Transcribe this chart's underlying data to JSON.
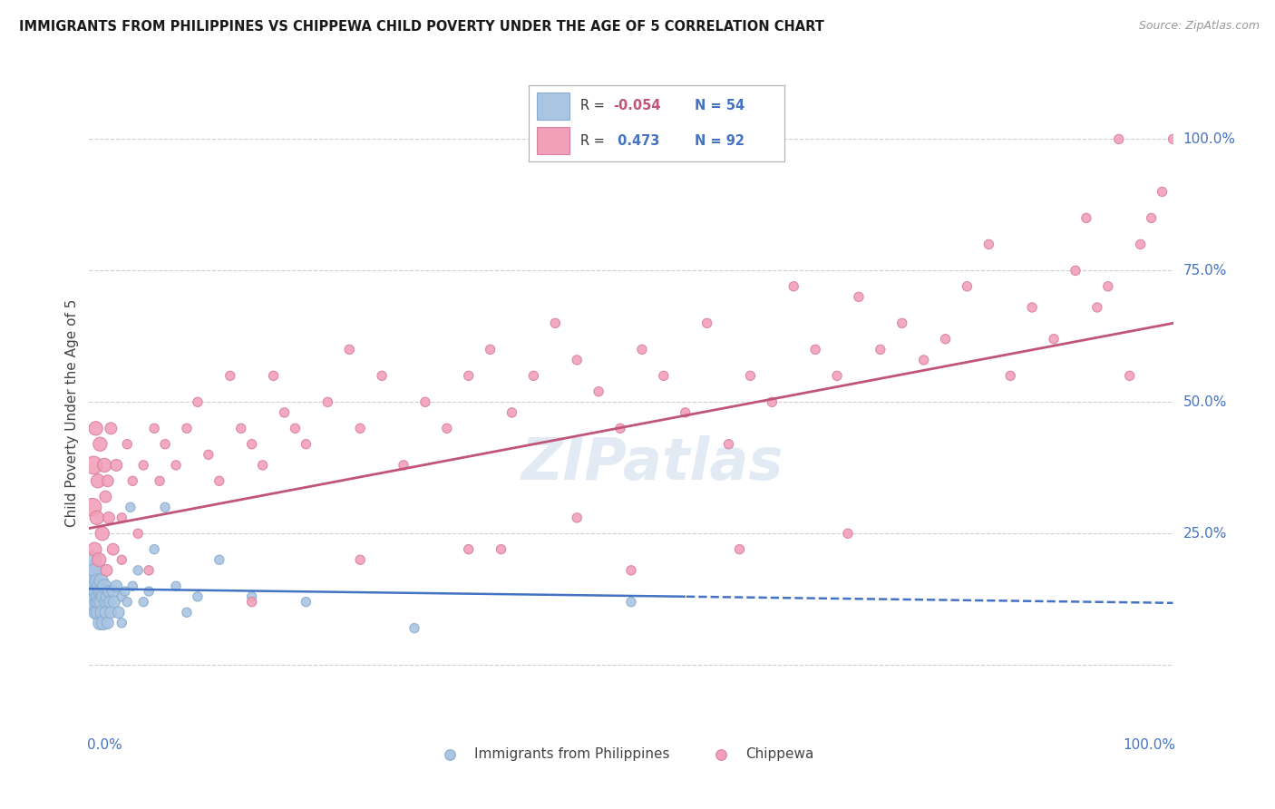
{
  "title": "IMMIGRANTS FROM PHILIPPINES VS CHIPPEWA CHILD POVERTY UNDER THE AGE OF 5 CORRELATION CHART",
  "source": "Source: ZipAtlas.com",
  "ylabel": "Child Poverty Under the Age of 5",
  "ytick_positions": [
    0.0,
    0.25,
    0.5,
    0.75,
    1.0
  ],
  "ytick_labels": [
    "",
    "25.0%",
    "50.0%",
    "75.0%",
    "100.0%"
  ],
  "xlim": [
    0.0,
    1.0
  ],
  "ylim": [
    -0.12,
    1.08
  ],
  "watermark": "ZIPatlas",
  "color_blue": "#aac5e2",
  "color_pink": "#f2a0b8",
  "line_blue": "#4472c4",
  "line_pink": "#c0547a",
  "background_color": "#ffffff",
  "grid_color": "#d0d0d0",
  "title_color": "#1a1a1a",
  "source_color": "#999999",
  "blue_points": [
    [
      0.002,
      0.18
    ],
    [
      0.003,
      0.14
    ],
    [
      0.003,
      0.2
    ],
    [
      0.004,
      0.16
    ],
    [
      0.004,
      0.12
    ],
    [
      0.005,
      0.15
    ],
    [
      0.005,
      0.18
    ],
    [
      0.006,
      0.1
    ],
    [
      0.006,
      0.14
    ],
    [
      0.007,
      0.12
    ],
    [
      0.007,
      0.16
    ],
    [
      0.008,
      0.13
    ],
    [
      0.008,
      0.1
    ],
    [
      0.009,
      0.12
    ],
    [
      0.009,
      0.15
    ],
    [
      0.01,
      0.14
    ],
    [
      0.01,
      0.08
    ],
    [
      0.011,
      0.16
    ],
    [
      0.011,
      0.12
    ],
    [
      0.012,
      0.1
    ],
    [
      0.012,
      0.14
    ],
    [
      0.013,
      0.13
    ],
    [
      0.013,
      0.08
    ],
    [
      0.014,
      0.15
    ],
    [
      0.015,
      0.12
    ],
    [
      0.015,
      0.1
    ],
    [
      0.016,
      0.13
    ],
    [
      0.017,
      0.08
    ],
    [
      0.018,
      0.14
    ],
    [
      0.019,
      0.12
    ],
    [
      0.02,
      0.1
    ],
    [
      0.022,
      0.14
    ],
    [
      0.023,
      0.12
    ],
    [
      0.025,
      0.15
    ],
    [
      0.027,
      0.1
    ],
    [
      0.03,
      0.13
    ],
    [
      0.03,
      0.08
    ],
    [
      0.033,
      0.14
    ],
    [
      0.035,
      0.12
    ],
    [
      0.038,
      0.3
    ],
    [
      0.04,
      0.15
    ],
    [
      0.045,
      0.18
    ],
    [
      0.05,
      0.12
    ],
    [
      0.055,
      0.14
    ],
    [
      0.06,
      0.22
    ],
    [
      0.07,
      0.3
    ],
    [
      0.08,
      0.15
    ],
    [
      0.09,
      0.1
    ],
    [
      0.1,
      0.13
    ],
    [
      0.12,
      0.2
    ],
    [
      0.15,
      0.13
    ],
    [
      0.2,
      0.12
    ],
    [
      0.3,
      0.07
    ],
    [
      0.5,
      0.12
    ]
  ],
  "pink_points": [
    [
      0.003,
      0.3
    ],
    [
      0.004,
      0.38
    ],
    [
      0.005,
      0.22
    ],
    [
      0.006,
      0.45
    ],
    [
      0.007,
      0.28
    ],
    [
      0.008,
      0.35
    ],
    [
      0.009,
      0.2
    ],
    [
      0.01,
      0.42
    ],
    [
      0.012,
      0.25
    ],
    [
      0.014,
      0.38
    ],
    [
      0.015,
      0.32
    ],
    [
      0.016,
      0.18
    ],
    [
      0.017,
      0.35
    ],
    [
      0.018,
      0.28
    ],
    [
      0.02,
      0.45
    ],
    [
      0.022,
      0.22
    ],
    [
      0.025,
      0.38
    ],
    [
      0.03,
      0.28
    ],
    [
      0.03,
      0.2
    ],
    [
      0.035,
      0.42
    ],
    [
      0.04,
      0.35
    ],
    [
      0.045,
      0.25
    ],
    [
      0.05,
      0.38
    ],
    [
      0.055,
      0.18
    ],
    [
      0.06,
      0.45
    ],
    [
      0.065,
      0.35
    ],
    [
      0.07,
      0.42
    ],
    [
      0.08,
      0.38
    ],
    [
      0.09,
      0.45
    ],
    [
      0.1,
      0.5
    ],
    [
      0.11,
      0.4
    ],
    [
      0.12,
      0.35
    ],
    [
      0.13,
      0.55
    ],
    [
      0.14,
      0.45
    ],
    [
      0.15,
      0.42
    ],
    [
      0.16,
      0.38
    ],
    [
      0.17,
      0.55
    ],
    [
      0.18,
      0.48
    ],
    [
      0.19,
      0.45
    ],
    [
      0.2,
      0.42
    ],
    [
      0.22,
      0.5
    ],
    [
      0.24,
      0.6
    ],
    [
      0.25,
      0.45
    ],
    [
      0.27,
      0.55
    ],
    [
      0.29,
      0.38
    ],
    [
      0.31,
      0.5
    ],
    [
      0.33,
      0.45
    ],
    [
      0.35,
      0.55
    ],
    [
      0.37,
      0.6
    ],
    [
      0.39,
      0.48
    ],
    [
      0.41,
      0.55
    ],
    [
      0.43,
      0.65
    ],
    [
      0.45,
      0.58
    ],
    [
      0.47,
      0.52
    ],
    [
      0.49,
      0.45
    ],
    [
      0.51,
      0.6
    ],
    [
      0.53,
      0.55
    ],
    [
      0.55,
      0.48
    ],
    [
      0.57,
      0.65
    ],
    [
      0.59,
      0.42
    ],
    [
      0.61,
      0.55
    ],
    [
      0.63,
      0.5
    ],
    [
      0.65,
      0.72
    ],
    [
      0.67,
      0.6
    ],
    [
      0.69,
      0.55
    ],
    [
      0.71,
      0.7
    ],
    [
      0.73,
      0.6
    ],
    [
      0.75,
      0.65
    ],
    [
      0.77,
      0.58
    ],
    [
      0.79,
      0.62
    ],
    [
      0.81,
      0.72
    ],
    [
      0.83,
      0.8
    ],
    [
      0.85,
      0.55
    ],
    [
      0.87,
      0.68
    ],
    [
      0.89,
      0.62
    ],
    [
      0.91,
      0.75
    ],
    [
      0.92,
      0.85
    ],
    [
      0.93,
      0.68
    ],
    [
      0.94,
      0.72
    ],
    [
      0.95,
      1.0
    ],
    [
      0.96,
      0.55
    ],
    [
      0.97,
      0.8
    ],
    [
      0.98,
      0.85
    ],
    [
      0.99,
      0.9
    ],
    [
      1.0,
      1.0
    ],
    [
      0.5,
      0.18
    ],
    [
      0.35,
      0.22
    ],
    [
      0.45,
      0.28
    ],
    [
      0.6,
      0.22
    ],
    [
      0.25,
      0.2
    ],
    [
      0.15,
      0.12
    ],
    [
      0.38,
      0.22
    ],
    [
      0.7,
      0.25
    ]
  ],
  "blue_line_solid_end": 0.55,
  "pink_line_start_y": 0.26,
  "pink_line_end_y": 0.65
}
